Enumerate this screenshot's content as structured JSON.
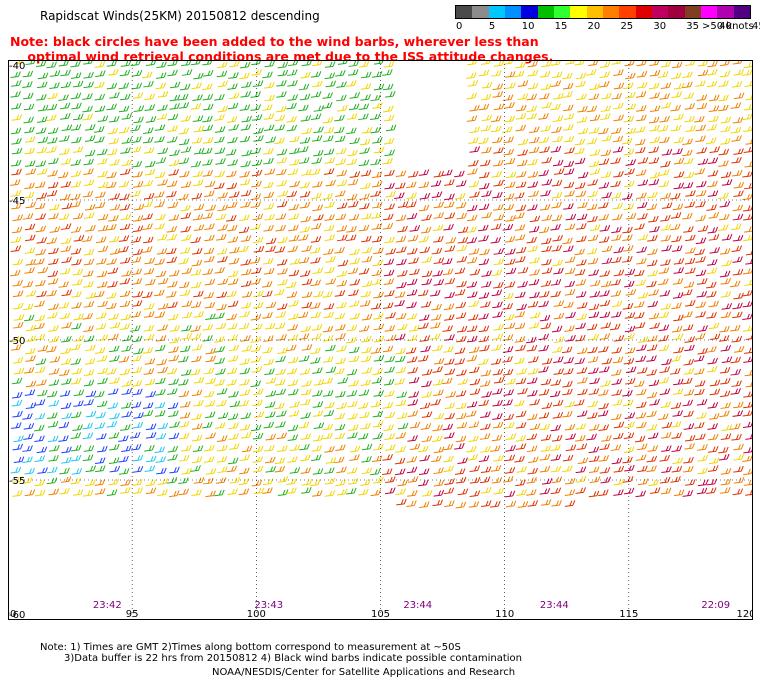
{
  "title": "Rapidscat Winds(25KM) 20150812 descending",
  "note": {
    "line1": "Note: black circles have been added to the wind barbs, wherever less than",
    "line2": "optimal wind retrieval conditions are met due to the ISS attitude changes."
  },
  "legend": {
    "unit_label": ">50 knots",
    "labels": [
      "0",
      "5",
      "10",
      "15",
      "20",
      "25",
      "30",
      "35",
      "40",
      "45"
    ],
    "colors": [
      "#4a4a4a",
      "#8c8c8c",
      "#00c8ff",
      "#0090ff",
      "#0000e0",
      "#00c000",
      "#30ff30",
      "#ffff00",
      "#ffc000",
      "#ff8000",
      "#ff4000",
      "#e00000",
      "#c00060",
      "#a00040",
      "#804020",
      "#ff00ff",
      "#b000b0",
      "#500080"
    ]
  },
  "map": {
    "x_ticks": [
      "90",
      "95",
      "100",
      "105",
      "110",
      "115",
      "120"
    ],
    "y_ticks": [
      "-40",
      "-45",
      "-50",
      "-55",
      "-60"
    ],
    "x_range": [
      90,
      120
    ],
    "y_range": [
      -60,
      -40
    ],
    "pass_times": [
      {
        "lon": 94,
        "label": "23:42"
      },
      {
        "lon": 100.5,
        "label": "23:43"
      },
      {
        "lon": 106.5,
        "label": "23:44"
      },
      {
        "lon": 112,
        "label": "23:44"
      },
      {
        "lon": 118.5,
        "label": "22:09"
      }
    ],
    "pass_time_color": "#800080"
  },
  "footer": {
    "line1": "Note: 1) Times are GMT 2)Times along bottom correspond to measurement at ~50S",
    "line2": "3)Data buffer is 22 hrs from 20150812 4) Black wind barbs indicate possible contamination",
    "line3": "NOAA/NESDIS/Center for Satellite Applications and Research"
  }
}
